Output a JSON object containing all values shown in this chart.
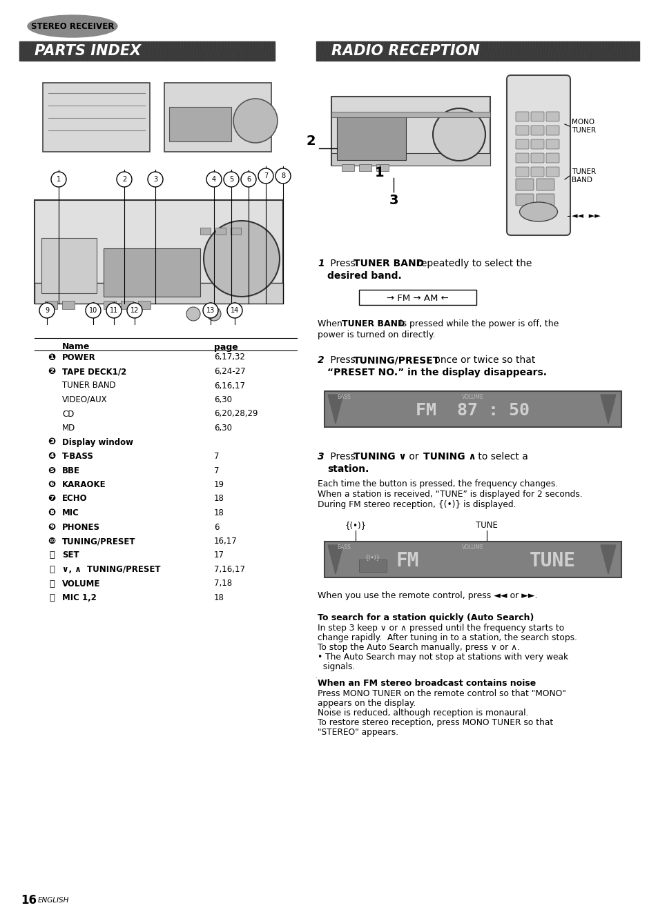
{
  "bg_color": "#ffffff",
  "title_stereo": "STEREO RECEIVER",
  "header_left": "PARTS INDEX",
  "header_right": "RADIO RECEPTION",
  "header_bg": "#4a4a4a",
  "page_num": "16",
  "page_lang": "ENGLISH",
  "parts_rows": [
    [
      "❶",
      "POWER",
      "6,17,32",
      true
    ],
    [
      "❷",
      "TAPE DECK1/2",
      "6,24-27",
      true
    ],
    [
      "",
      "TUNER BAND",
      "6,16,17",
      true
    ],
    [
      "",
      "VIDEO/AUX",
      "6,30",
      true
    ],
    [
      "",
      "CD",
      "6,20,28,29",
      true
    ],
    [
      "",
      "MD",
      "6,30",
      true
    ],
    [
      "❸",
      "Display window",
      "",
      true
    ],
    [
      "❹",
      "T-BASS",
      "7",
      true
    ],
    [
      "❺",
      "BBE",
      "7",
      true
    ],
    [
      "❻",
      "KARAOKE",
      "19",
      true
    ],
    [
      "❼",
      "ECHO",
      "18",
      true
    ],
    [
      "❽",
      "MIC",
      "18",
      true
    ],
    [
      "❾",
      "PHONES",
      "6",
      true
    ],
    [
      "❿",
      "TUNING/PRESET",
      "16,17",
      true
    ],
    [
      "⒫",
      "SET",
      "17",
      true
    ],
    [
      "⒬",
      "∨, ∧  TUNING/PRESET",
      "7,16,17",
      true
    ],
    [
      "⒭",
      "VOLUME",
      "7,18",
      true
    ],
    [
      "⒮",
      "MIC 1,2",
      "18",
      true
    ]
  ],
  "auto_search_title": "To search for a station quickly (Auto Search)",
  "auto_search_lines": [
    "In step 3 keep ∨ or ∧ pressed until the frequency starts to",
    "change rapidly.  After tuning in to a station, the search stops.",
    "To stop the Auto Search manually, press ∨ or ∧.",
    "• The Auto Search may not stop at stations with very weak",
    "  signals."
  ],
  "fm_noise_title": "When an FM stereo broadcast contains noise",
  "fm_noise_lines": [
    "Press MONO TUNER on the remote control so that \"MONO\"",
    "appears on the display.",
    "Noise is reduced, although reception is monaural.",
    "To restore stereo reception, press MONO TUNER so that",
    "\"STEREO\" appears."
  ]
}
